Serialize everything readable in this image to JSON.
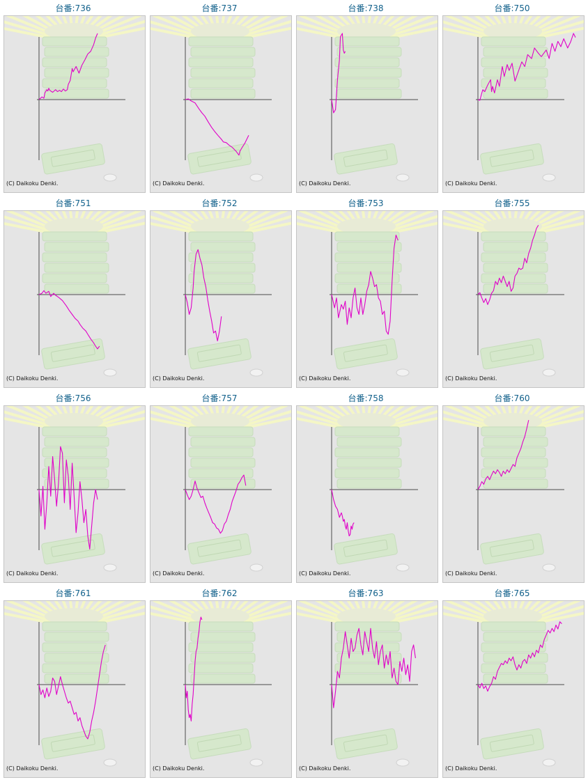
{
  "page": {
    "title_prefix": "台番:",
    "copyright": "(C) Daikoku Denki.",
    "line_color": "#e000c8",
    "axis_color": "#4a4a4a",
    "background_color": "#e5e5e5",
    "title_color": "#0f5f8a"
  },
  "chart_data": [
    {
      "type": "line",
      "title": "台番:736",
      "x": [
        0,
        0.03,
        0.05,
        0.06,
        0.08,
        0.09,
        0.1,
        0.11,
        0.14,
        0.17,
        0.19,
        0.21,
        0.23,
        0.25,
        0.27,
        0.29,
        0.3,
        0.32,
        0.34,
        0.35,
        0.38,
        0.41,
        0.44,
        0.47,
        0.5,
        0.53,
        0.56,
        0.58,
        0.6
      ],
      "values": [
        0,
        0.04,
        0.02,
        0.1,
        0.15,
        0.13,
        0.17,
        0.14,
        0.11,
        0.15,
        0.12,
        0.14,
        0.12,
        0.16,
        0.13,
        0.15,
        0.23,
        0.29,
        0.47,
        0.42,
        0.5,
        0.4,
        0.52,
        0.6,
        0.69,
        0.73,
        0.83,
        0.93,
        1.0
      ]
    },
    {
      "type": "line",
      "title": "台番:737",
      "x": [
        0,
        0.03,
        0.06,
        0.1,
        0.14,
        0.17,
        0.2,
        0.24,
        0.27,
        0.3,
        0.34,
        0.37,
        0.39,
        0.42,
        0.45,
        0.48,
        0.52,
        0.55,
        0.56,
        0.58,
        0.61,
        0.63,
        0.65
      ],
      "values": [
        0,
        0.01,
        -0.02,
        -0.05,
        -0.14,
        -0.2,
        -0.25,
        -0.35,
        -0.42,
        -0.48,
        -0.55,
        -0.6,
        -0.64,
        -0.65,
        -0.69,
        -0.72,
        -0.78,
        -0.84,
        -0.78,
        -0.73,
        -0.66,
        -0.6,
        -0.54
      ]
    },
    {
      "type": "line",
      "title": "台番:738",
      "x": [
        0,
        0.02,
        0.04,
        0.06,
        0.08,
        0.09,
        0.11,
        0.12,
        0.13,
        0.14
      ],
      "values": [
        0,
        -0.2,
        -0.15,
        0.3,
        0.6,
        0.95,
        1.0,
        0.75,
        0.7,
        0.73
      ]
    },
    {
      "type": "line",
      "title": "台番:750",
      "x": [
        0,
        0.02,
        0.04,
        0.05,
        0.07,
        0.1,
        0.13,
        0.14,
        0.15,
        0.17,
        0.2,
        0.22,
        0.25,
        0.27,
        0.3,
        0.32,
        0.35,
        0.38,
        0.42,
        0.45,
        0.48,
        0.51,
        0.55,
        0.58,
        0.62,
        0.65,
        0.7,
        0.73,
        0.76,
        0.79,
        0.82,
        0.85,
        0.88,
        0.92,
        0.95,
        0.98,
        1.0
      ],
      "values": [
        0,
        -0.01,
        0.1,
        0.15,
        0.12,
        0.22,
        0.3,
        0.12,
        0.2,
        0.1,
        0.3,
        0.2,
        0.5,
        0.35,
        0.53,
        0.44,
        0.55,
        0.28,
        0.45,
        0.57,
        0.5,
        0.68,
        0.62,
        0.78,
        0.7,
        0.65,
        0.75,
        0.62,
        0.85,
        0.73,
        0.88,
        0.8,
        0.92,
        0.78,
        0.87,
        1.0,
        0.94
      ]
    },
    {
      "type": "line",
      "title": "台番:751",
      "x": [
        0,
        0.03,
        0.05,
        0.07,
        0.1,
        0.12,
        0.15,
        0.17,
        0.2,
        0.24,
        0.28,
        0.31,
        0.34,
        0.37,
        0.4,
        0.42,
        0.45,
        0.48,
        0.5,
        0.53,
        0.56,
        0.58,
        0.6,
        0.61,
        0.62
      ],
      "values": [
        0,
        0.02,
        0.06,
        0.02,
        0.05,
        -0.03,
        0.02,
        -0.01,
        -0.04,
        -0.09,
        -0.17,
        -0.24,
        -0.3,
        -0.36,
        -0.4,
        -0.45,
        -0.51,
        -0.55,
        -0.6,
        -0.67,
        -0.73,
        -0.78,
        -0.82,
        -0.8,
        -0.78
      ]
    },
    {
      "type": "line",
      "title": "台番:752",
      "x": [
        0,
        0.02,
        0.04,
        0.06,
        0.08,
        0.09,
        0.11,
        0.13,
        0.15,
        0.17,
        0.19,
        0.21,
        0.23,
        0.25,
        0.27,
        0.29,
        0.31,
        0.33,
        0.35,
        0.37
      ],
      "values": [
        0,
        -0.12,
        -0.3,
        -0.2,
        0.1,
        0.35,
        0.61,
        0.68,
        0.55,
        0.45,
        0.25,
        0.12,
        -0.08,
        -0.25,
        -0.4,
        -0.58,
        -0.55,
        -0.7,
        -0.55,
        -0.33
      ]
    },
    {
      "type": "line",
      "title": "台番:753",
      "x": [
        0,
        0.03,
        0.05,
        0.07,
        0.1,
        0.12,
        0.14,
        0.16,
        0.18,
        0.2,
        0.22,
        0.24,
        0.26,
        0.28,
        0.3,
        0.32,
        0.34,
        0.36,
        0.38,
        0.4,
        0.42,
        0.44,
        0.46,
        0.48,
        0.5,
        0.52,
        0.54,
        0.56,
        0.58,
        0.6,
        0.62,
        0.64,
        0.66,
        0.68
      ],
      "values": [
        0,
        -0.2,
        -0.05,
        -0.35,
        -0.15,
        -0.22,
        -0.1,
        -0.45,
        -0.2,
        -0.35,
        -0.05,
        0.1,
        -0.2,
        -0.3,
        -0.05,
        -0.3,
        -0.15,
        0.05,
        0.15,
        0.35,
        0.25,
        0.12,
        0.15,
        -0.05,
        -0.1,
        -0.3,
        -0.25,
        -0.55,
        -0.6,
        -0.4,
        0.2,
        0.7,
        0.9,
        0.82
      ]
    },
    {
      "type": "line",
      "title": "台番:755",
      "x": [
        0,
        0.02,
        0.04,
        0.06,
        0.08,
        0.1,
        0.12,
        0.14,
        0.16,
        0.18,
        0.2,
        0.22,
        0.24,
        0.26,
        0.28,
        0.3,
        0.32,
        0.34,
        0.36,
        0.38,
        0.4,
        0.42,
        0.44,
        0.46,
        0.48,
        0.5,
        0.52,
        0.54,
        0.56,
        0.58,
        0.6,
        0.62
      ],
      "values": [
        0,
        0.03,
        -0.05,
        -0.12,
        -0.06,
        -0.15,
        -0.08,
        0.02,
        0.06,
        0.2,
        0.15,
        0.25,
        0.18,
        0.28,
        0.2,
        0.12,
        0.2,
        0.05,
        0.1,
        0.28,
        0.32,
        0.4,
        0.38,
        0.4,
        0.55,
        0.48,
        0.62,
        0.7,
        0.82,
        0.9,
        1.0,
        1.05
      ]
    },
    {
      "type": "line",
      "title": "台番:756",
      "x": [
        0,
        0.02,
        0.04,
        0.06,
        0.08,
        0.1,
        0.12,
        0.14,
        0.16,
        0.18,
        0.2,
        0.22,
        0.24,
        0.26,
        0.28,
        0.3,
        0.32,
        0.34,
        0.36,
        0.38,
        0.4,
        0.42,
        0.44,
        0.46,
        0.48,
        0.5,
        0.52,
        0.54,
        0.56,
        0.58,
        0.6
      ],
      "values": [
        0,
        -0.4,
        0.05,
        -0.6,
        -0.2,
        0.35,
        -0.1,
        0.5,
        0.15,
        -0.25,
        0.1,
        0.65,
        0.55,
        -0.2,
        0.45,
        0.2,
        -0.3,
        0.4,
        -0.1,
        -0.65,
        -0.35,
        0.12,
        -0.15,
        -0.5,
        -0.3,
        -0.7,
        -0.9,
        -0.55,
        -0.2,
        0.0,
        -0.15
      ]
    },
    {
      "type": "line",
      "title": "台番:757",
      "x": [
        0,
        0.02,
        0.04,
        0.06,
        0.08,
        0.1,
        0.12,
        0.14,
        0.16,
        0.18,
        0.2,
        0.22,
        0.24,
        0.26,
        0.28,
        0.3,
        0.32,
        0.34,
        0.36,
        0.38,
        0.4,
        0.42,
        0.44,
        0.46,
        0.48,
        0.5,
        0.52,
        0.54,
        0.56,
        0.58,
        0.6,
        0.62
      ],
      "values": [
        0,
        -0.08,
        -0.15,
        -0.1,
        0.0,
        0.13,
        0.02,
        -0.05,
        -0.12,
        -0.1,
        -0.2,
        -0.28,
        -0.35,
        -0.42,
        -0.5,
        -0.52,
        -0.58,
        -0.6,
        -0.66,
        -0.62,
        -0.52,
        -0.48,
        -0.38,
        -0.3,
        -0.18,
        -0.1,
        -0.02,
        0.08,
        0.12,
        0.18,
        0.22,
        0.06
      ]
    },
    {
      "type": "line",
      "title": "台番:758",
      "x": [
        0,
        0.02,
        0.04,
        0.06,
        0.08,
        0.1,
        0.11,
        0.12,
        0.13,
        0.14,
        0.15,
        0.16,
        0.17,
        0.18,
        0.19,
        0.2,
        0.21,
        0.22,
        0.23
      ],
      "values": [
        0,
        -0.15,
        -0.25,
        -0.3,
        -0.42,
        -0.35,
        -0.4,
        -0.48,
        -0.45,
        -0.55,
        -0.6,
        -0.5,
        -0.62,
        -0.7,
        -0.68,
        -0.55,
        -0.6,
        -0.52,
        -0.5
      ]
    },
    {
      "type": "line",
      "title": "台番:760",
      "x": [
        0,
        0.02,
        0.04,
        0.06,
        0.08,
        0.1,
        0.12,
        0.14,
        0.16,
        0.18,
        0.2,
        0.22,
        0.24,
        0.26,
        0.28,
        0.3,
        0.32,
        0.34,
        0.36,
        0.38,
        0.4,
        0.42,
        0.44,
        0.46,
        0.48,
        0.5,
        0.52
      ],
      "values": [
        0,
        0.05,
        0.12,
        0.08,
        0.16,
        0.2,
        0.15,
        0.22,
        0.28,
        0.24,
        0.3,
        0.26,
        0.2,
        0.28,
        0.24,
        0.3,
        0.26,
        0.32,
        0.38,
        0.35,
        0.48,
        0.55,
        0.62,
        0.72,
        0.8,
        0.92,
        1.05
      ]
    },
    {
      "type": "line",
      "title": "台番:761",
      "x": [
        0,
        0.02,
        0.04,
        0.06,
        0.08,
        0.1,
        0.12,
        0.14,
        0.16,
        0.18,
        0.2,
        0.22,
        0.24,
        0.26,
        0.28,
        0.3,
        0.32,
        0.34,
        0.36,
        0.38,
        0.4,
        0.42,
        0.44,
        0.46,
        0.48,
        0.5,
        0.52,
        0.54,
        0.56,
        0.58,
        0.6,
        0.62,
        0.64,
        0.66,
        0.68
      ],
      "values": [
        0,
        -0.15,
        -0.08,
        -0.2,
        -0.05,
        -0.18,
        -0.1,
        0.1,
        0.05,
        -0.15,
        -0.02,
        0.12,
        0.0,
        -0.1,
        -0.2,
        -0.28,
        -0.25,
        -0.35,
        -0.45,
        -0.42,
        -0.55,
        -0.5,
        -0.62,
        -0.7,
        -0.78,
        -0.82,
        -0.72,
        -0.55,
        -0.42,
        -0.25,
        -0.05,
        0.15,
        0.35,
        0.5,
        0.6
      ]
    },
    {
      "type": "line",
      "title": "台番:762",
      "x": [
        0,
        0.01,
        0.02,
        0.03,
        0.04,
        0.05,
        0.06,
        0.07,
        0.08,
        0.09,
        0.1,
        0.11,
        0.12,
        0.13,
        0.14,
        0.15,
        0.16,
        0.17
      ],
      "values": [
        0,
        -0.2,
        -0.1,
        -0.38,
        -0.5,
        -0.45,
        -0.55,
        -0.3,
        -0.15,
        0.1,
        0.35,
        0.5,
        0.55,
        0.7,
        0.8,
        0.95,
        1.02,
        0.98
      ]
    },
    {
      "type": "line",
      "title": "台番:763",
      "x": [
        0,
        0.02,
        0.04,
        0.06,
        0.08,
        0.1,
        0.12,
        0.14,
        0.16,
        0.18,
        0.2,
        0.22,
        0.24,
        0.26,
        0.28,
        0.3,
        0.32,
        0.34,
        0.36,
        0.38,
        0.4,
        0.42,
        0.44,
        0.46,
        0.48,
        0.5,
        0.52,
        0.54,
        0.56,
        0.58,
        0.6,
        0.62,
        0.64,
        0.66,
        0.68,
        0.7,
        0.72,
        0.74,
        0.76,
        0.78,
        0.8,
        0.82,
        0.84,
        0.86
      ],
      "values": [
        0,
        -0.35,
        -0.1,
        0.2,
        0.1,
        0.4,
        0.55,
        0.8,
        0.6,
        0.4,
        0.7,
        0.5,
        0.55,
        0.75,
        0.85,
        0.6,
        0.45,
        0.8,
        0.65,
        0.5,
        0.85,
        0.55,
        0.4,
        0.65,
        0.3,
        0.5,
        0.6,
        0.25,
        0.45,
        0.3,
        0.5,
        0.1,
        0.25,
        0.05,
        0.0,
        0.35,
        0.2,
        0.4,
        0.15,
        0.3,
        0.05,
        0.5,
        0.6,
        0.4
      ]
    },
    {
      "type": "line",
      "title": "台番:765",
      "x": [
        0,
        0.02,
        0.04,
        0.06,
        0.08,
        0.1,
        0.12,
        0.14,
        0.16,
        0.18,
        0.2,
        0.22,
        0.24,
        0.26,
        0.28,
        0.3,
        0.32,
        0.34,
        0.36,
        0.38,
        0.4,
        0.42,
        0.44,
        0.46,
        0.48,
        0.5,
        0.52,
        0.54,
        0.56,
        0.58,
        0.6,
        0.62,
        0.64,
        0.66,
        0.68,
        0.7,
        0.72,
        0.74,
        0.76,
        0.78,
        0.8,
        0.82,
        0.84,
        0.86
      ],
      "values": [
        0,
        -0.05,
        0.02,
        -0.06,
        -0.02,
        -0.1,
        -0.03,
        0.02,
        0.12,
        0.08,
        0.2,
        0.26,
        0.32,
        0.3,
        0.36,
        0.32,
        0.4,
        0.36,
        0.42,
        0.3,
        0.22,
        0.3,
        0.25,
        0.35,
        0.38,
        0.32,
        0.45,
        0.4,
        0.48,
        0.42,
        0.52,
        0.48,
        0.6,
        0.56,
        0.68,
        0.75,
        0.82,
        0.78,
        0.85,
        0.8,
        0.9,
        0.84,
        0.95,
        0.92
      ]
    }
  ]
}
